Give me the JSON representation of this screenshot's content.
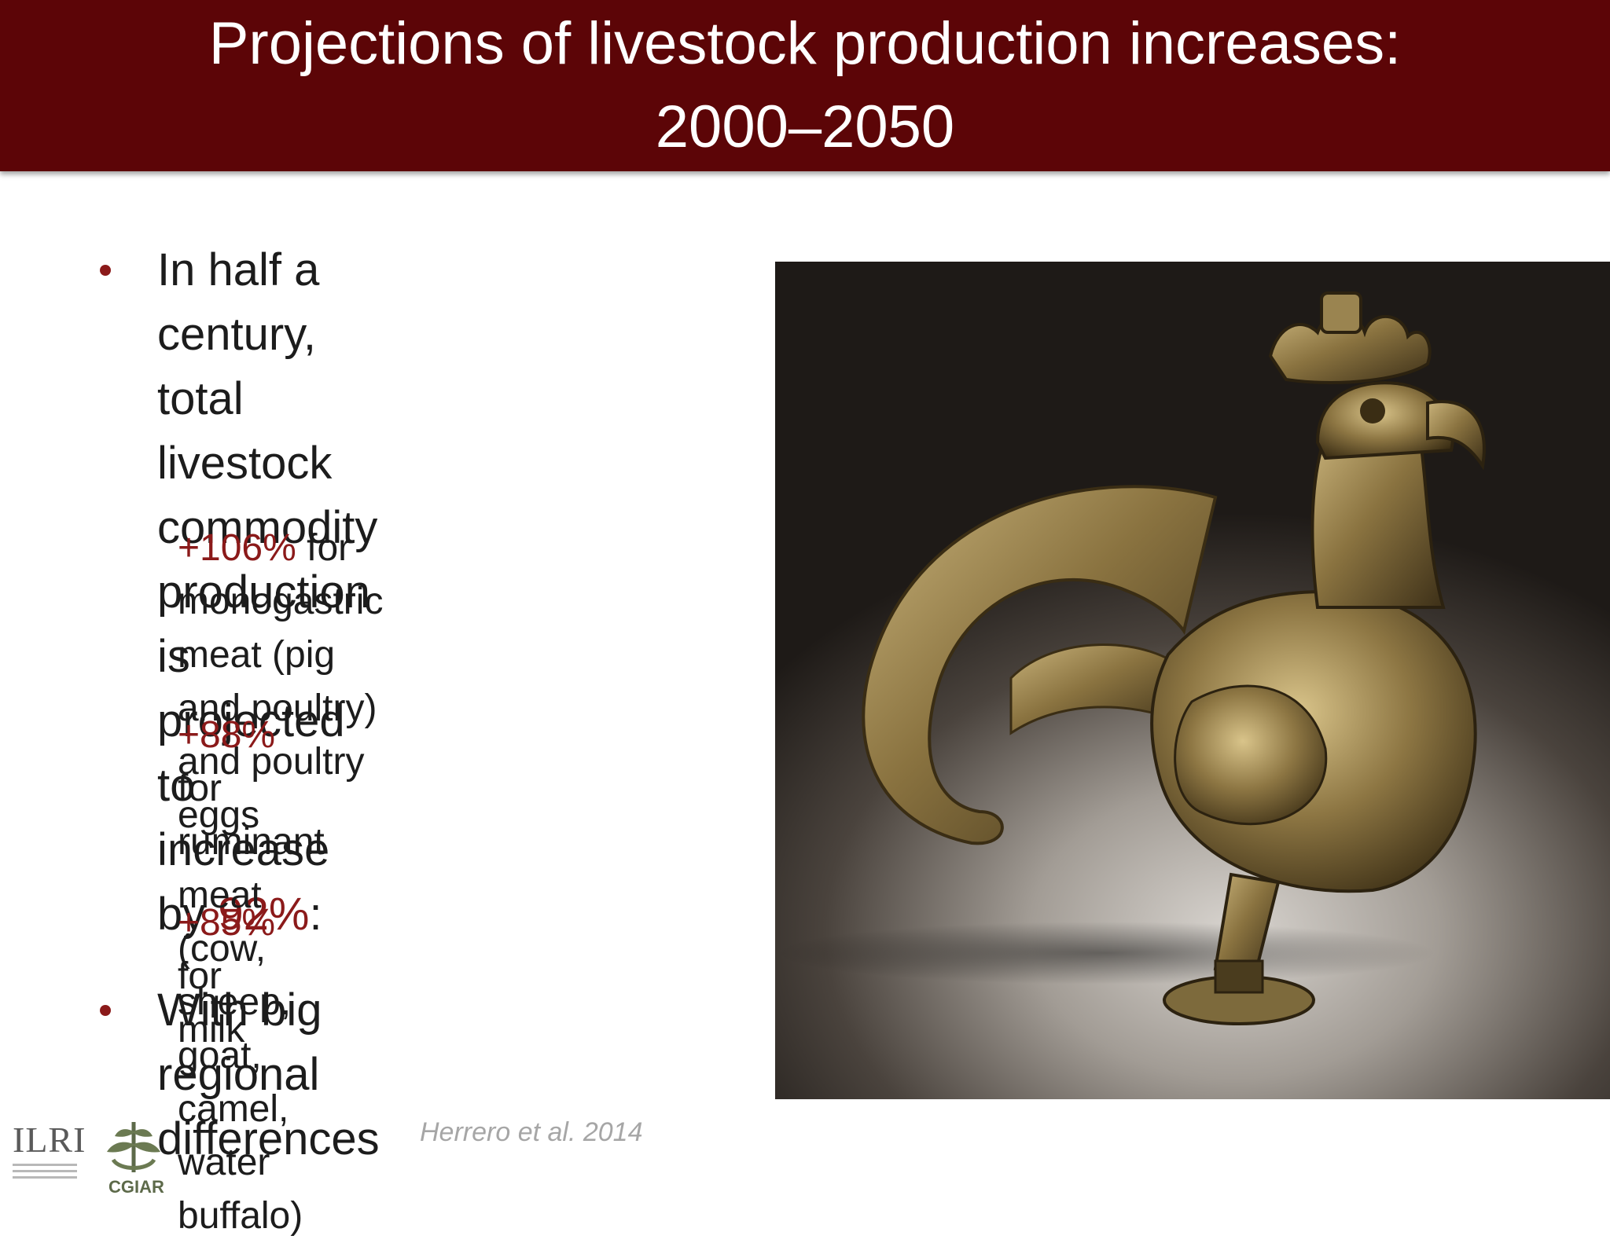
{
  "title": {
    "line1": "Projections of livestock production increases:",
    "line2": "2000–2050"
  },
  "bullets": {
    "main1": {
      "line1": "In half a century, total",
      "line2": "livestock commodity",
      "line3": "production is projected",
      "line4_prefix": "to increase by ",
      "line4_highlight": "92%",
      "line4_suffix": ":"
    },
    "sub1": {
      "highlight": "+106%",
      "line1_rest": " for monogastric",
      "line2": "meat (pig and poultry)",
      "line3": "and poultry eggs"
    },
    "sub2": {
      "highlight": "+88%",
      "line1_rest": " for ruminant meat",
      "line2": "(cow, sheep, goat, camel,",
      "line3": "water buffalo)"
    },
    "sub3": {
      "highlight": "+85%",
      "line1_rest": " for milk"
    },
    "main2": {
      "line1": "With big regional",
      "line2": "differences"
    }
  },
  "citation": "Herrero et al. 2014",
  "logos": {
    "ilri": "ILRI",
    "cgiar": "CGIAR"
  },
  "colors": {
    "title_bg": "#5c0507",
    "highlight": "#8b1a1a",
    "citation": "#a6a6a6"
  }
}
